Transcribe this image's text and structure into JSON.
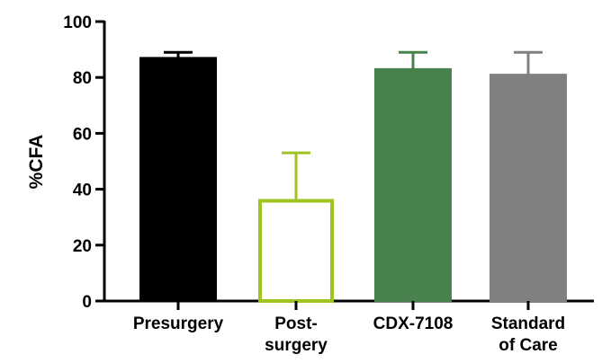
{
  "chart_data": {
    "type": "bar",
    "title": "",
    "xlabel": "",
    "ylabel": "%CFA",
    "ylim": [
      0,
      100
    ],
    "yticks": [
      0,
      20,
      40,
      60,
      80,
      100
    ],
    "grid": false,
    "legend": "none",
    "categories": [
      [
        "Presurgery"
      ],
      [
        "Post-",
        "surgery"
      ],
      [
        "CDX-7108"
      ],
      [
        "Standard",
        "of Care"
      ]
    ],
    "values": [
      87,
      36.5,
      83,
      81
    ],
    "error_upper": [
      89,
      53,
      89,
      89
    ],
    "bar_styles": [
      {
        "fill": "#000000",
        "stroke": "#000000"
      },
      {
        "fill": "#ffffff",
        "stroke": "#9fc31f"
      },
      {
        "fill": "#47824e",
        "stroke": "#47824e"
      },
      {
        "fill": "#808080",
        "stroke": "#808080"
      }
    ]
  }
}
